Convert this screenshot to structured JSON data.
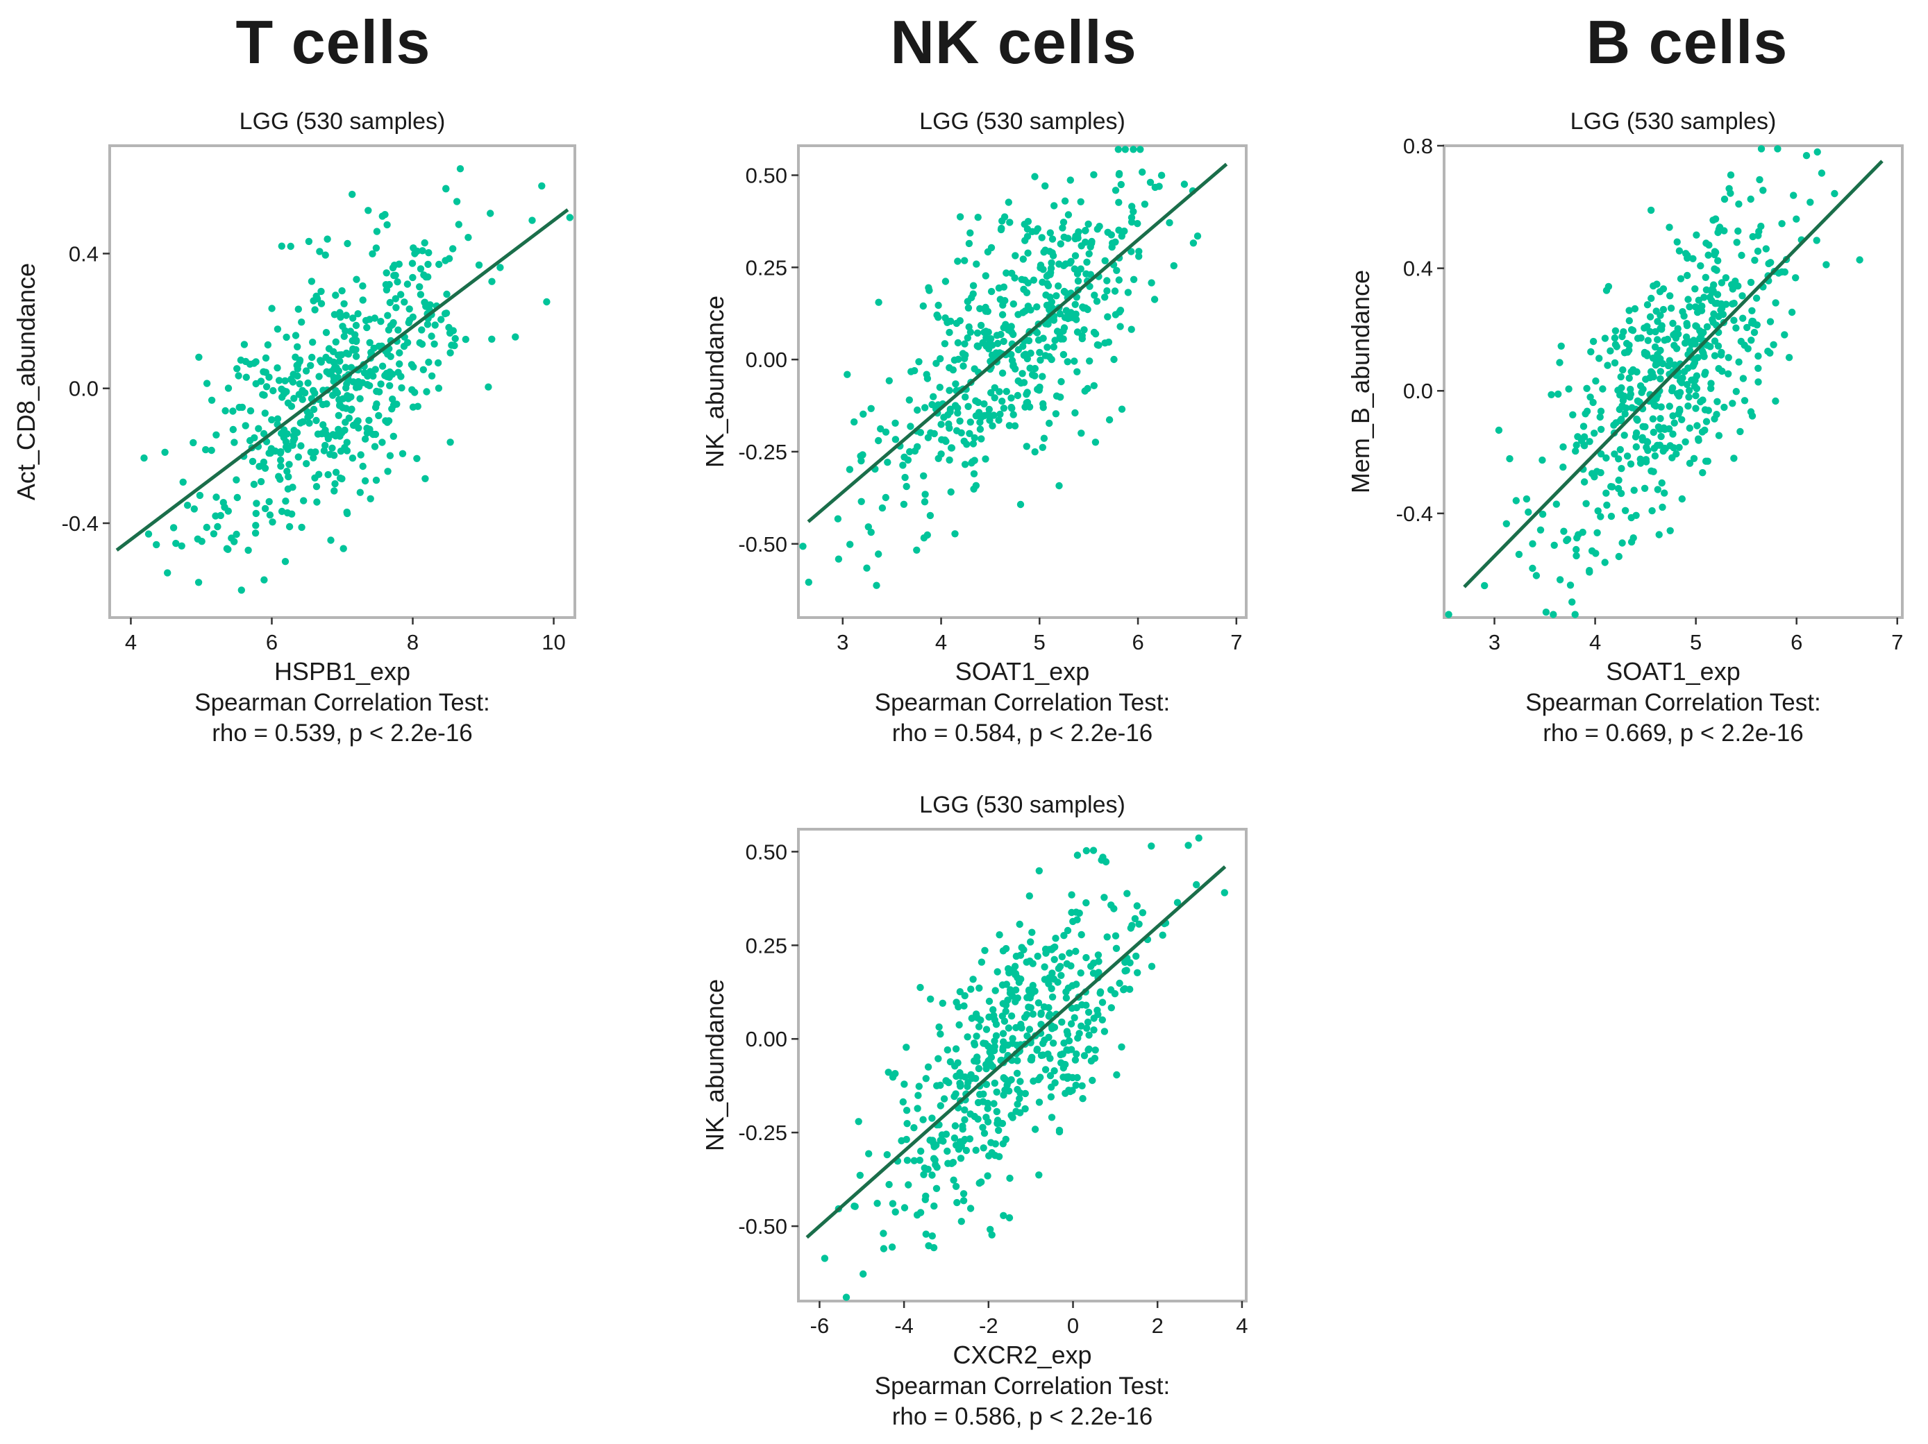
{
  "page_titles": [
    "T cells",
    "NK cells",
    "B cells"
  ],
  "colors": {
    "points": "#00c49a",
    "line": "#1a6e4a",
    "frame": "#b5b5b5"
  },
  "chart_data": [
    {
      "type": "scatter",
      "title": "LGG (530 samples)",
      "xlabel": "HSPB1_exp",
      "ylabel": "Act_CD8_abundance",
      "xlim": [
        3.7,
        10.3
      ],
      "ylim": [
        -0.68,
        0.72
      ],
      "xticks": [
        4,
        6,
        8,
        10
      ],
      "yticks": [
        -0.4,
        0.0,
        0.4
      ],
      "ytick_labels": [
        "-0.4",
        "0.0",
        "0.4"
      ],
      "n_points": 530,
      "fit_line": {
        "x0": 3.8,
        "y0": -0.48,
        "x1": 10.2,
        "y1": 0.53
      },
      "test_label": "Spearman Correlation Test:",
      "stat_label": "rho = 0.539, p < 2.2e-16",
      "seed": 11
    },
    {
      "type": "scatter",
      "title": "LGG (530 samples)",
      "xlabel": "SOAT1_exp",
      "ylabel": "NK_abundance",
      "xlim": [
        2.55,
        7.1
      ],
      "ylim": [
        -0.7,
        0.58
      ],
      "xticks": [
        3,
        4,
        5,
        6,
        7
      ],
      "yticks": [
        -0.5,
        -0.25,
        0.0,
        0.25,
        0.5
      ],
      "ytick_labels": [
        "-0.50",
        "-0.25",
        "0.00",
        "0.25",
        "0.50"
      ],
      "n_points": 530,
      "fit_line": {
        "x0": 2.65,
        "y0": -0.44,
        "x1": 6.9,
        "y1": 0.53
      },
      "test_label": "Spearman Correlation Test:",
      "stat_label": "rho = 0.584, p < 2.2e-16",
      "seed": 23
    },
    {
      "type": "scatter",
      "title": "LGG (530 samples)",
      "xlabel": "SOAT1_exp",
      "ylabel": "Mem_B_abundance",
      "xlim": [
        2.5,
        7.05
      ],
      "ylim": [
        -0.74,
        0.8
      ],
      "xticks": [
        3,
        4,
        5,
        6,
        7
      ],
      "yticks": [
        -0.4,
        0.0,
        0.4,
        0.8
      ],
      "ytick_labels": [
        "-0.4",
        "0.0",
        "0.4",
        "0.8"
      ],
      "n_points": 530,
      "fit_line": {
        "x0": 2.7,
        "y0": -0.64,
        "x1": 6.85,
        "y1": 0.75
      },
      "test_label": "Spearman Correlation Test:",
      "stat_label": "rho = 0.669, p < 2.2e-16",
      "seed": 37
    },
    {
      "type": "scatter",
      "title": "LGG (530 samples)",
      "xlabel": "CXCR2_exp",
      "ylabel": "NK_abundance",
      "xlim": [
        -6.5,
        4.1
      ],
      "ylim": [
        -0.7,
        0.56
      ],
      "xticks": [
        -6,
        -4,
        -2,
        0,
        2,
        4
      ],
      "yticks": [
        -0.5,
        -0.25,
        0.0,
        0.25,
        0.5
      ],
      "ytick_labels": [
        "-0.50",
        "-0.25",
        "0.00",
        "0.25",
        "0.50"
      ],
      "n_points": 530,
      "fit_line": {
        "x0": -6.3,
        "y0": -0.53,
        "x1": 3.6,
        "y1": 0.46
      },
      "test_label": "Spearman Correlation Test:",
      "stat_label": "rho = 0.586, p < 2.2e-16",
      "seed": 53
    }
  ]
}
